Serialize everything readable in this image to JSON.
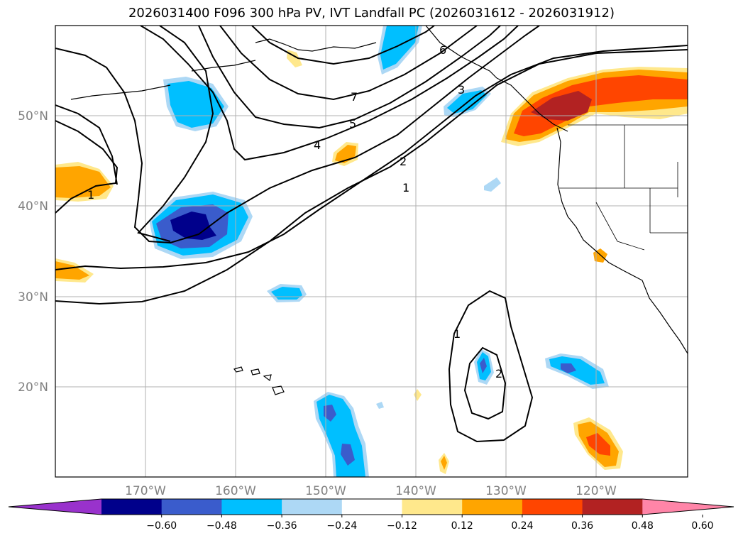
{
  "title": "2026031400 F096 300 hPa PV, IVT Landfall PC (2026031612 - 2026031912)",
  "latitude_labels": [
    "50°N",
    "40°N",
    "30°N",
    "20°N"
  ],
  "longitude_labels": [
    "170°W",
    "160°W",
    "150°W",
    "140°W",
    "130°W",
    "120°W"
  ],
  "contour_labels": [
    "7",
    "6",
    "5",
    "4",
    "3",
    "2",
    "1",
    "1",
    "1",
    "2"
  ],
  "colorbar": {
    "tick_labels": [
      "−0.60",
      "−0.48",
      "−0.36",
      "−0.24",
      "−0.12",
      "0.12",
      "0.24",
      "0.36",
      "0.48",
      "0.60"
    ],
    "colors": [
      "#9932cc",
      "#00008b",
      "#3a5ccc",
      "#00bfff",
      "#add8f5",
      "#ffffff",
      "#ffe88c",
      "#ffa500",
      "#ff4500",
      "#b22222",
      "#ff85a8"
    ]
  }
}
